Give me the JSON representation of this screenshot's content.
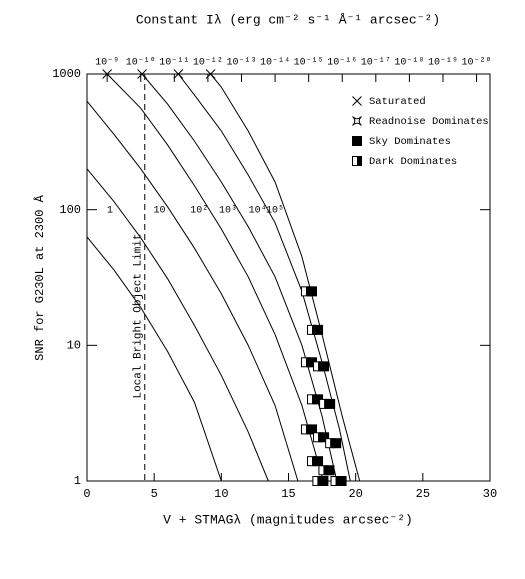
{
  "chart_data": {
    "type": "line",
    "title": "Constant Iλ (erg cm⁻² s⁻¹ Å⁻¹ arcsec⁻²)",
    "x_label": "V + STMAGλ (magnitudes arcsec⁻²)",
    "y_label": "SNR for G230L at 2300 Å",
    "log_y": true,
    "color": "#000000",
    "xlim": [
      0,
      30
    ],
    "ylim": [
      1,
      1000
    ],
    "xticks": [
      0,
      5,
      10,
      15,
      20,
      25,
      30
    ],
    "yticks": [
      1,
      10,
      100,
      1000
    ],
    "top_ticks": [
      {
        "value": 1.5,
        "label": "10⁻⁹"
      },
      {
        "value": 4.0,
        "label": "10⁻¹⁰"
      },
      {
        "value": 6.5,
        "label": "10⁻¹¹"
      },
      {
        "value": 9.0,
        "label": "10⁻¹²"
      },
      {
        "value": 11.5,
        "label": "10⁻¹³"
      },
      {
        "value": 14.0,
        "label": "10⁻¹⁴"
      },
      {
        "value": 16.5,
        "label": "10⁻¹⁵"
      },
      {
        "value": 19.0,
        "label": "10⁻¹⁶"
      },
      {
        "value": 21.5,
        "label": "10⁻¹⁷"
      },
      {
        "value": 24.0,
        "label": "10⁻¹⁸"
      },
      {
        "value": 26.5,
        "label": "10⁻¹⁹"
      },
      {
        "value": 29.0,
        "label": "10⁻²⁰"
      }
    ],
    "annotation": {
      "text": "Local Bright Object Limit",
      "x": 4.3
    },
    "series": [
      {
        "name": "1",
        "x": [
          0,
          2,
          4,
          6,
          8,
          10
        ],
        "values": [
          63,
          36,
          19,
          9,
          3.8,
          1
        ]
      },
      {
        "name": "10",
        "x": [
          0,
          2,
          4,
          6,
          8,
          10,
          12,
          13.5
        ],
        "values": [
          200,
          115,
          62,
          31,
          14,
          6,
          2.3,
          1
        ]
      },
      {
        "name": "10²",
        "x": [
          0,
          2,
          4,
          6,
          8,
          10,
          12,
          14,
          15.7
        ],
        "values": [
          630,
          360,
          200,
          105,
          52,
          24,
          10,
          3.6,
          1
        ]
      },
      {
        "name": "10³",
        "x": [
          1.5,
          4,
          6,
          8,
          10,
          12,
          14,
          16,
          17.6
        ],
        "values": [
          1000,
          560,
          300,
          150,
          72,
          32,
          12,
          3.6,
          1
        ]
      },
      {
        "name": "10⁴",
        "x": [
          4.1,
          6,
          8,
          10,
          12,
          14,
          16,
          17.5,
          18.6
        ],
        "values": [
          1000,
          600,
          320,
          160,
          75,
          32,
          10,
          3,
          1
        ]
      },
      {
        "name": "10⁵",
        "x": [
          6.8,
          8,
          10,
          12,
          14,
          16,
          17.5,
          18.8,
          19.6
        ],
        "values": [
          1000,
          700,
          380,
          180,
          80,
          25,
          7.5,
          2.4,
          1
        ]
      },
      {
        "name": null,
        "x": [
          9.2,
          10,
          12,
          14,
          16,
          17.5,
          19,
          20.3
        ],
        "values": [
          1000,
          800,
          380,
          160,
          45,
          12,
          3,
          1
        ]
      }
    ],
    "markers": [
      {
        "name": "Saturated",
        "symbol": "cross",
        "x": [
          1.5,
          4.1,
          6.8,
          9.2
        ],
        "values": [
          1000,
          1000,
          1000,
          1000
        ]
      },
      {
        "name": "Readnoise Dominates",
        "symbol": "star",
        "x": [],
        "values": []
      },
      {
        "name": "Sky Dominates",
        "symbol": "filled",
        "x": [
          16.75,
          17.2,
          17.65,
          18.1,
          18.55,
          18.95,
          16.75,
          17.2,
          17.65,
          18.05,
          16.75,
          17.2,
          17.6
        ],
        "values": [
          25,
          13,
          7,
          3.7,
          1.9,
          1,
          7.5,
          4,
          2.1,
          1.2,
          2.4,
          1.4,
          1
        ]
      },
      {
        "name": "Dark Dominates",
        "symbol": "half",
        "x": [
          16.3,
          16.75,
          17.2,
          17.65,
          18.1,
          18.5,
          16.3,
          16.75,
          17.2,
          17.6,
          16.3,
          16.75,
          17.15
        ],
        "values": [
          25,
          13,
          7,
          3.7,
          1.9,
          1,
          7.5,
          4,
          2.1,
          1.2,
          2.4,
          1.4,
          1
        ]
      }
    ]
  }
}
